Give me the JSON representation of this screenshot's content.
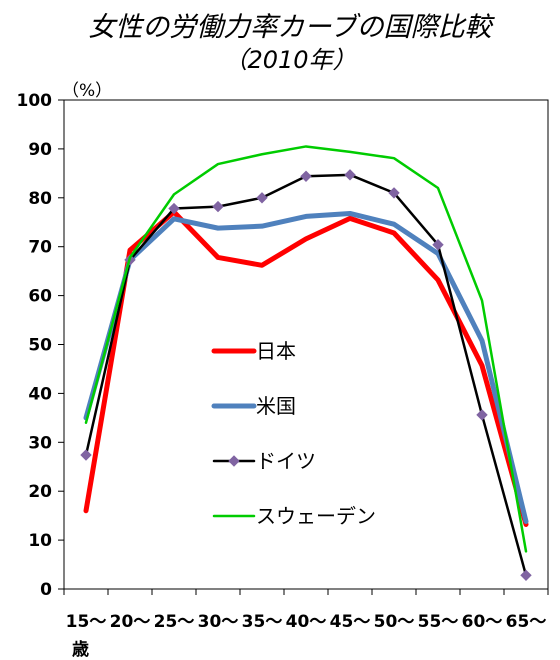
{
  "chart_data": {
    "type": "line",
    "title": "女性の労働力率カーブの国際比較",
    "subtitle": "（2010年）",
    "ylabel": "（%）",
    "xlabel_suffix": "歳",
    "ylim": [
      0,
      100
    ],
    "y_ticks": [
      0,
      10,
      20,
      30,
      40,
      50,
      60,
      70,
      80,
      90,
      100
    ],
    "grid": false,
    "legend_position": "center-left",
    "categories": [
      "15～",
      "20～",
      "25～",
      "30～",
      "35～",
      "40～",
      "45～",
      "50～",
      "55～",
      "60～",
      "65～"
    ],
    "series": [
      {
        "name": "日本",
        "color": "#ff0000",
        "values": [
          16.0,
          69.3,
          77.1,
          67.8,
          66.2,
          71.6,
          75.8,
          72.8,
          63.2,
          45.7,
          13.2
        ],
        "marker": "none"
      },
      {
        "name": "米国",
        "color": "#4f81bd",
        "values": [
          35.0,
          67.3,
          75.7,
          73.8,
          74.2,
          76.2,
          76.8,
          74.6,
          68.6,
          50.8,
          13.8
        ],
        "marker": "none"
      },
      {
        "name": "ドイツ",
        "color": "#000000",
        "values": [
          27.4,
          67.3,
          77.8,
          78.2,
          80.0,
          84.4,
          84.7,
          81.0,
          70.4,
          35.6,
          2.8
        ],
        "marker": "diamond",
        "marker_color": "#8064a2"
      },
      {
        "name": "スウェーデン",
        "color": "#00cc00",
        "values": [
          34.0,
          67.8,
          80.7,
          86.9,
          88.9,
          90.5,
          89.4,
          88.1,
          82.0,
          59.0,
          7.7
        ],
        "marker": "none"
      }
    ]
  }
}
